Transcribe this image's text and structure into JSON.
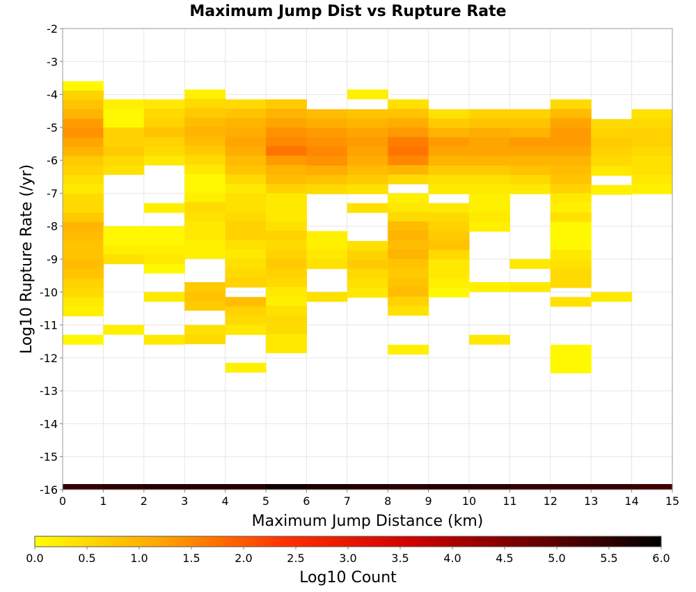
{
  "chart_data": {
    "type": "heatmap",
    "title": "Maximum Jump Dist vs Rupture Rate",
    "xlabel": "Maximum Jump Distance (km)",
    "ylabel": "Log10 Rupture Rate (/yr)",
    "xlim": [
      0,
      15
    ],
    "ylim": [
      -16,
      -2
    ],
    "x_ticks": [
      "0",
      "1",
      "2",
      "3",
      "4",
      "5",
      "6",
      "7",
      "8",
      "9",
      "10",
      "11",
      "12",
      "13",
      "14",
      "15"
    ],
    "y_ticks": [
      "-2",
      "-3",
      "-4",
      "-5",
      "-6",
      "-7",
      "-8",
      "-9",
      "-10",
      "-11",
      "-12",
      "-13",
      "-14",
      "-15",
      "-16"
    ],
    "grid": true,
    "y_bin_size": 0.285,
    "colorbar": {
      "label": "Log10 Count",
      "range": [
        0,
        6
      ],
      "ticks": [
        "0.0",
        "0.5",
        "1.0",
        "1.5",
        "2.0",
        "2.5",
        "3.0",
        "3.5",
        "4.0",
        "4.5",
        "5.0",
        "5.5",
        "6.0"
      ],
      "stops": [
        "#ffff00",
        "#ffa500",
        "#ff3000",
        "#d00000",
        "#6a0000",
        "#000000"
      ]
    },
    "columns": [
      {
        "x": 0,
        "runs": [
          [
            -3.6,
            0.1,
            0.6,
            0.8,
            1.0,
            1.3,
            1.4,
            1.2,
            1.0,
            0.7,
            0.6,
            0.4,
            0.3,
            0.5,
            0.5,
            0.7,
            1.0,
            0.9,
            0.8,
            0.8,
            0.9,
            0.8,
            0.6,
            0.5,
            0.3,
            0.2
          ],
          [
            -11.3,
            0.1
          ]
        ]
      },
      {
        "x": 1,
        "runs": [
          [
            -4.15,
            0.2,
            0.1,
            0.1,
            0.6,
            0.6,
            0.7,
            0.5,
            0.4
          ],
          [
            -8.0,
            0.1,
            0.1,
            0.2,
            0.4
          ],
          [
            -11.0,
            0.2
          ]
        ]
      },
      {
        "x": 2,
        "runs": [
          [
            -4.15,
            0.3,
            0.5,
            0.6,
            0.8,
            0.6,
            0.5,
            0.3
          ],
          [
            -7.3,
            0.2
          ],
          [
            -8.0,
            0.1,
            0.1,
            0.2,
            0.3,
            0.1
          ],
          [
            -10.0,
            0.3
          ],
          [
            -11.3,
            0.3
          ]
        ]
      },
      {
        "x": 3,
        "runs": [
          [
            -3.85,
            0.2,
            0.5,
            0.7,
            0.9,
            1.0,
            0.9,
            0.7,
            0.5,
            0.3,
            0.1,
            0.1,
            0.2,
            0.5,
            0.4,
            0.3,
            0.3,
            0.2,
            0.2
          ],
          [
            -9.7,
            0.7,
            0.8,
            0.7
          ],
          [
            -11.0,
            0.4,
            0.5
          ]
        ]
      },
      {
        "x": 4,
        "runs": [
          [
            -4.15,
            0.5,
            0.8,
            1.0,
            1.1,
            1.2,
            1.1,
            0.9,
            0.8,
            0.5,
            0.3,
            0.4,
            0.4,
            0.5,
            0.6,
            0.6,
            0.4,
            0.3,
            0.4,
            0.5,
            0.6
          ],
          [
            -10.15,
            0.9,
            0.6,
            0.5,
            0.3
          ],
          [
            -12.15,
            0.2
          ]
        ]
      },
      {
        "x": 5,
        "runs": [
          [
            -4.15,
            0.7,
            1.0,
            1.2,
            1.4,
            1.5,
            1.7,
            1.3,
            1.0,
            0.9,
            0.6,
            0.3,
            0.3,
            0.3,
            0.4,
            0.6,
            0.5,
            0.6,
            0.7,
            0.6,
            0.5,
            0.3,
            0.2,
            0.4,
            0.5,
            0.5,
            0.3,
            0.3
          ]
        ]
      },
      {
        "x": 6,
        "runs": [
          [
            -4.45,
            0.9,
            1.1,
            1.3,
            1.4,
            1.5,
            1.4,
            1.1,
            0.8,
            0.5
          ],
          [
            -8.15,
            0.2,
            0.2,
            0.3,
            0.4
          ],
          [
            -10.0,
            0.4
          ]
        ]
      },
      {
        "x": 7,
        "runs": [
          [
            -3.85,
            0.2
          ],
          [
            -4.45,
            0.8,
            1.0,
            1.2,
            1.3,
            1.2,
            1.1,
            0.9,
            0.7,
            0.4
          ],
          [
            -7.3,
            0.4
          ],
          [
            -8.45,
            0.4,
            0.6,
            0.7,
            0.5,
            0.4,
            0.3
          ]
        ]
      },
      {
        "x": 8,
        "runs": [
          [
            -4.15,
            0.4,
            0.8,
            1.1,
            1.3,
            1.6,
            1.7,
            1.5,
            1.0,
            0.5
          ],
          [
            -7.0,
            0.2,
            0.3,
            0.5,
            0.9,
            1.0,
            0.9,
            1.0,
            0.8,
            0.7,
            0.8,
            0.9,
            0.6,
            0.4
          ],
          [
            -11.6,
            0.2
          ]
        ]
      },
      {
        "x": 9,
        "runs": [
          [
            -4.45,
            0.4,
            0.7,
            1.0,
            1.3,
            1.2,
            1.0,
            0.7,
            0.4,
            0.3
          ],
          [
            -7.3,
            0.3,
            0.5,
            0.6,
            0.7,
            0.8,
            0.5,
            0.3,
            0.3,
            0.2,
            0.1
          ]
        ]
      },
      {
        "x": 10,
        "runs": [
          [
            -4.45,
            0.6,
            0.8,
            1.1,
            1.2,
            1.2,
            1.0,
            0.7,
            0.4,
            0.3,
            0.2,
            0.2,
            0.3,
            0.2
          ],
          [
            -9.7,
            0.2
          ],
          [
            -11.3,
            0.3
          ]
        ]
      },
      {
        "x": 11,
        "runs": [
          [
            -4.45,
            0.6,
            0.8,
            1.0,
            1.3,
            1.2,
            1.0,
            0.8,
            0.5,
            0.3
          ],
          [
            -9.0,
            0.3
          ],
          [
            -9.7,
            0.3
          ]
        ]
      },
      {
        "x": 12,
        "runs": [
          [
            -4.15,
            0.5,
            0.9,
            1.2,
            1.3,
            1.3,
            1.2,
            1.0,
            0.9,
            0.8,
            0.6,
            0.3
          ],
          [
            -7.3,
            0.2,
            0.4,
            0.1,
            0.1,
            0.1,
            0.3,
            0.4,
            0.5,
            0.5
          ],
          [
            -10.15,
            0.4
          ],
          [
            -11.6,
            0.1,
            0.1,
            0.1
          ]
        ]
      },
      {
        "x": 13,
        "runs": [
          [
            -4.75,
            0.5,
            0.6,
            0.7,
            0.6,
            0.5,
            0.3
          ],
          [
            -6.75,
            0.2
          ],
          [
            -10.0,
            0.3
          ]
        ]
      },
      {
        "x": 14,
        "runs": [
          [
            -4.45,
            0.4,
            0.5,
            0.6,
            0.6,
            0.5,
            0.4,
            0.4,
            0.3,
            0.2
          ]
        ]
      }
    ],
    "bottom_row": {
      "y": -16,
      "levels": [
        5.4,
        5.5,
        5.6,
        5.6,
        5.6,
        5.8,
        5.7,
        5.6,
        5.5,
        5.6,
        5.5,
        5.4,
        5.4,
        5.4,
        5.3
      ]
    }
  }
}
